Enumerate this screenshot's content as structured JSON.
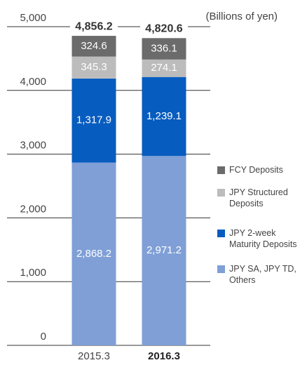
{
  "chart_data": {
    "type": "stacked-bar",
    "unit_label": "(Billions of yen)",
    "categories": [
      "2015.3",
      "2016.3"
    ],
    "series": [
      {
        "name": "JPY SA, JPY TD, Others",
        "color": "#7f9fd6",
        "values": [
          2868.2,
          2971.2
        ],
        "value_labels": [
          "2,868.2",
          "2,971.2"
        ]
      },
      {
        "name": "JPY 2-week Maturity Deposits",
        "color": "#075cbf",
        "values": [
          1317.9,
          1239.1
        ],
        "value_labels": [
          "1,317.9",
          "1,239.1"
        ]
      },
      {
        "name": "JPY Structured Deposits",
        "color": "#bcbcbc",
        "values": [
          345.3,
          274.1
        ],
        "value_labels": [
          "345.3",
          "274.1"
        ]
      },
      {
        "name": "FCY Deposits",
        "color": "#6b6b6b",
        "values": [
          324.6,
          336.1
        ],
        "value_labels": [
          "324.6",
          "336.1"
        ]
      }
    ],
    "totals": [
      4856.2,
      4820.6
    ],
    "total_labels": [
      "4,856.2",
      "4,820.6"
    ],
    "ylim": [
      0,
      5000
    ],
    "yticks": [
      0,
      {
        "value": 1000,
        "label": "1,000"
      },
      {
        "value": 2000,
        "label": "2,000"
      },
      {
        "value": 3000,
        "label": "3,000"
      },
      {
        "value": 4000,
        "label": "4,000"
      },
      {
        "value": 5000,
        "label": "5,000"
      }
    ],
    "grid": true
  }
}
